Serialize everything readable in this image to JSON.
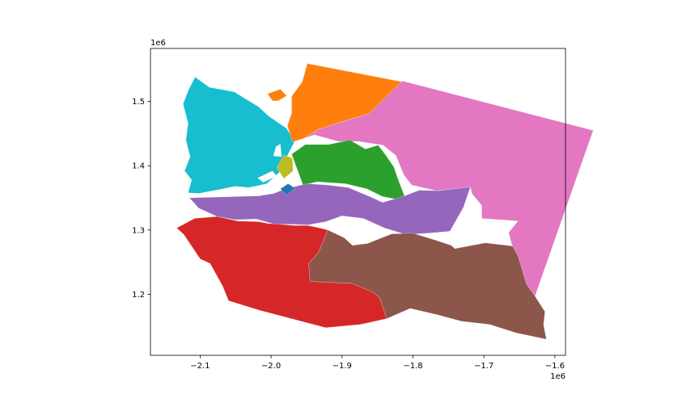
{
  "chart_data": {
    "type": "map",
    "title": "",
    "xlabel": "",
    "ylabel": "",
    "x_offset_text": "1e6",
    "y_offset_text": "1e6",
    "xlim": [
      -2.17,
      -1.585
    ],
    "ylim": [
      1.105,
      1.5825
    ],
    "x_ticks": [
      -2.1,
      -2.0,
      -1.9,
      -1.8,
      -1.7,
      -1.6
    ],
    "x_tick_labels": [
      "−2.1",
      "−2.0",
      "−1.9",
      "−1.8",
      "−1.7",
      "−1.6"
    ],
    "y_ticks": [
      1.2,
      1.3,
      1.4,
      1.5
    ],
    "y_tick_labels": [
      "1.2",
      "1.3",
      "1.4",
      "1.5"
    ],
    "grid": false,
    "legend": "none",
    "regions": [
      {
        "color": "#17becf",
        "points": [
          [
            -2.107,
            1.538
          ],
          [
            -2.087,
            1.522
          ],
          [
            -2.052,
            1.515
          ],
          [
            -2.018,
            1.492
          ],
          [
            -2.003,
            1.477
          ],
          [
            -1.978,
            1.458
          ],
          [
            -1.967,
            1.437
          ],
          [
            -1.976,
            1.418
          ],
          [
            -1.986,
            1.392
          ],
          [
            -2.006,
            1.372
          ],
          [
            -2.031,
            1.366
          ],
          [
            -2.051,
            1.368
          ],
          [
            -2.073,
            1.363
          ],
          [
            -2.102,
            1.357
          ],
          [
            -2.117,
            1.358
          ],
          [
            -2.112,
            1.378
          ],
          [
            -2.122,
            1.392
          ],
          [
            -2.114,
            1.414
          ],
          [
            -2.12,
            1.44
          ],
          [
            -2.117,
            1.466
          ],
          [
            -2.124,
            1.496
          ],
          [
            -2.116,
            1.519
          ]
        ]
      },
      {
        "color": "#ff7f0e",
        "points": [
          [
            -1.956,
            1.531
          ],
          [
            -1.949,
            1.559
          ],
          [
            -1.817,
            1.531
          ],
          [
            -1.815,
            1.497
          ],
          [
            -1.862,
            1.481
          ],
          [
            -1.898,
            1.469
          ],
          [
            -1.932,
            1.457
          ],
          [
            -1.955,
            1.442
          ],
          [
            -1.97,
            1.437
          ],
          [
            -1.977,
            1.462
          ],
          [
            -1.971,
            1.482
          ],
          [
            -1.971,
            1.508
          ]
        ]
      },
      {
        "color": "#ff7f0e",
        "points": [
          [
            -2.005,
            1.512
          ],
          [
            -1.987,
            1.519
          ],
          [
            -1.978,
            1.509
          ],
          [
            -1.99,
            1.501
          ],
          [
            -1.998,
            1.501
          ]
        ]
      },
      {
        "color": "#e377c2",
        "points": [
          [
            -1.815,
            1.532
          ],
          [
            -1.546,
            1.455
          ],
          [
            -1.628,
            1.197
          ],
          [
            -1.64,
            1.216
          ],
          [
            -1.652,
            1.26
          ],
          [
            -1.661,
            1.278
          ],
          [
            -1.665,
            1.296
          ],
          [
            -1.652,
            1.314
          ],
          [
            -1.703,
            1.318
          ],
          [
            -1.703,
            1.338
          ],
          [
            -1.717,
            1.357
          ],
          [
            -1.719,
            1.367
          ],
          [
            -1.767,
            1.361
          ],
          [
            -1.802,
            1.37
          ],
          [
            -1.813,
            1.386
          ],
          [
            -1.824,
            1.416
          ],
          [
            -1.842,
            1.432
          ],
          [
            -1.877,
            1.438
          ],
          [
            -1.906,
            1.438
          ],
          [
            -1.939,
            1.448
          ],
          [
            -1.955,
            1.442
          ],
          [
            -1.932,
            1.457
          ],
          [
            -1.898,
            1.469
          ],
          [
            -1.862,
            1.481
          ]
        ]
      },
      {
        "color": "#2ca02c",
        "points": [
          [
            -1.971,
            1.418
          ],
          [
            -1.952,
            1.433
          ],
          [
            -1.919,
            1.433
          ],
          [
            -1.889,
            1.44
          ],
          [
            -1.867,
            1.426
          ],
          [
            -1.849,
            1.432
          ],
          [
            -1.838,
            1.416
          ],
          [
            -1.827,
            1.398
          ],
          [
            -1.822,
            1.382
          ],
          [
            -1.812,
            1.353
          ],
          [
            -1.824,
            1.348
          ],
          [
            -1.843,
            1.352
          ],
          [
            -1.865,
            1.364
          ],
          [
            -1.895,
            1.372
          ],
          [
            -1.935,
            1.375
          ],
          [
            -1.955,
            1.37
          ]
        ]
      },
      {
        "color": "#bcbd22",
        "points": [
          [
            -1.992,
            1.397
          ],
          [
            -1.982,
            1.417
          ],
          [
            -1.97,
            1.412
          ],
          [
            -1.969,
            1.392
          ],
          [
            -1.982,
            1.38
          ]
        ]
      },
      {
        "color": "#9467bd",
        "points": [
          [
            -2.017,
            1.353
          ],
          [
            -1.996,
            1.357
          ],
          [
            -1.98,
            1.364
          ],
          [
            -1.95,
            1.372
          ],
          [
            -1.92,
            1.37
          ],
          [
            -1.891,
            1.366
          ],
          [
            -1.861,
            1.352
          ],
          [
            -1.843,
            1.343
          ],
          [
            -1.83,
            1.347
          ],
          [
            -1.812,
            1.353
          ],
          [
            -1.791,
            1.362
          ],
          [
            -1.765,
            1.361
          ],
          [
            -1.719,
            1.367
          ],
          [
            -1.729,
            1.335
          ],
          [
            -1.748,
            1.298
          ],
          [
            -1.779,
            1.295
          ],
          [
            -1.81,
            1.293
          ],
          [
            -1.84,
            1.303
          ],
          [
            -1.87,
            1.318
          ],
          [
            -1.9,
            1.322
          ],
          [
            -1.923,
            1.313
          ],
          [
            -1.948,
            1.308
          ],
          [
            -1.972,
            1.309
          ],
          [
            -1.995,
            1.309
          ],
          [
            -2.021,
            1.317
          ],
          [
            -2.051,
            1.316
          ],
          [
            -2.076,
            1.321
          ],
          [
            -2.102,
            1.334
          ],
          [
            -2.115,
            1.35
          ]
        ]
      },
      {
        "color": "#1f77b4",
        "points": [
          [
            -1.987,
            1.364
          ],
          [
            -1.976,
            1.372
          ],
          [
            -1.966,
            1.365
          ],
          [
            -1.978,
            1.354
          ]
        ]
      },
      {
        "color": "#d62728",
        "points": [
          [
            -2.108,
            1.318
          ],
          [
            -2.076,
            1.321
          ],
          [
            -2.047,
            1.314
          ],
          [
            -2.018,
            1.313
          ],
          [
            -2.003,
            1.31
          ],
          [
            -1.988,
            1.309
          ],
          [
            -1.967,
            1.307
          ],
          [
            -1.948,
            1.307
          ],
          [
            -1.931,
            1.303
          ],
          [
            -1.92,
            1.3
          ],
          [
            -1.933,
            1.265
          ],
          [
            -1.947,
            1.248
          ],
          [
            -1.945,
            1.22
          ],
          [
            -1.886,
            1.217
          ],
          [
            -1.856,
            1.203
          ],
          [
            -1.847,
            1.195
          ],
          [
            -1.837,
            1.162
          ],
          [
            -1.874,
            1.153
          ],
          [
            -1.923,
            1.148
          ],
          [
            -1.968,
            1.161
          ],
          [
            -2.016,
            1.175
          ],
          [
            -2.06,
            1.19
          ],
          [
            -2.068,
            1.212
          ],
          [
            -2.086,
            1.248
          ],
          [
            -2.1,
            1.255
          ],
          [
            -2.123,
            1.293
          ],
          [
            -2.133,
            1.303
          ]
        ]
      },
      {
        "color": "#8c564b",
        "points": [
          [
            -1.92,
            1.3
          ],
          [
            -1.897,
            1.288
          ],
          [
            -1.885,
            1.276
          ],
          [
            -1.864,
            1.279
          ],
          [
            -1.83,
            1.294
          ],
          [
            -1.8,
            1.295
          ],
          [
            -1.768,
            1.284
          ],
          [
            -1.746,
            1.276
          ],
          [
            -1.741,
            1.271
          ],
          [
            -1.717,
            1.276
          ],
          [
            -1.698,
            1.28
          ],
          [
            -1.659,
            1.275
          ],
          [
            -1.661,
            1.278
          ],
          [
            -1.652,
            1.26
          ],
          [
            -1.64,
            1.216
          ],
          [
            -1.628,
            1.197
          ],
          [
            -1.614,
            1.173
          ],
          [
            -1.616,
            1.153
          ],
          [
            -1.612,
            1.13
          ],
          [
            -1.655,
            1.14
          ],
          [
            -1.692,
            1.153
          ],
          [
            -1.732,
            1.158
          ],
          [
            -1.765,
            1.168
          ],
          [
            -1.804,
            1.178
          ],
          [
            -1.837,
            1.162
          ],
          [
            -1.847,
            1.195
          ],
          [
            -1.856,
            1.203
          ],
          [
            -1.886,
            1.217
          ],
          [
            -1.945,
            1.22
          ],
          [
            -1.947,
            1.248
          ],
          [
            -1.933,
            1.265
          ]
        ]
      }
    ],
    "voids": [
      {
        "color": "#ffffff",
        "points": [
          [
            -2.019,
            1.381
          ],
          [
            -1.998,
            1.392
          ],
          [
            -1.992,
            1.384
          ],
          [
            -2.011,
            1.374
          ]
        ]
      },
      {
        "color": "#ffffff",
        "points": [
          [
            -1.997,
            1.415
          ],
          [
            -1.993,
            1.43
          ],
          [
            -1.987,
            1.434
          ],
          [
            -1.985,
            1.414
          ]
        ]
      }
    ]
  }
}
